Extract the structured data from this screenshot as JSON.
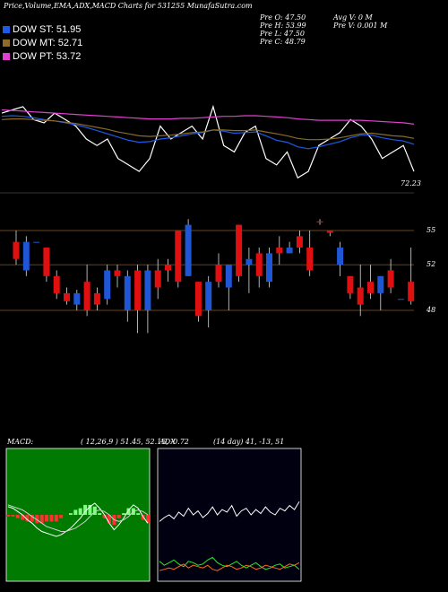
{
  "chart_data": [
    {
      "type": "price-lines",
      "title": "Price,Volume,EMA,ADX,MACD Charts for 531255 MunafaSutra.com",
      "info": [
        "Pre  O: 47.50",
        "Pre  H: 53.99",
        "Pre  L: 47.50",
        "Pre  C: 48.79",
        "Avg V: 0  M",
        "Pre  V: 0.001 M"
      ],
      "annotation": "72.23",
      "ylim": [
        44,
        62
      ],
      "series": [
        {
          "color": "#ffffff",
          "values": [
            57,
            57.5,
            58,
            56,
            55.5,
            57,
            56,
            55,
            53,
            52,
            53,
            50,
            49,
            48,
            50,
            55,
            53,
            54,
            55,
            53,
            58,
            52,
            51,
            54,
            55,
            50,
            49,
            51,
            47,
            48,
            52,
            53,
            54,
            56,
            55,
            53,
            50,
            51,
            52,
            48
          ]
        },
        {
          "name": "DOW ST: 51.95",
          "color": "#1e5ae6",
          "values": [
            56.5,
            56.6,
            56.5,
            56.3,
            56,
            55.8,
            55.5,
            55.2,
            54.8,
            54.3,
            53.8,
            53.3,
            52.8,
            52.5,
            52.6,
            53,
            53.2,
            53.5,
            53.8,
            54,
            54.4,
            54.2,
            53.9,
            54,
            54.1,
            53.5,
            52.8,
            52.5,
            51.8,
            51.5,
            51.8,
            52.2,
            52.6,
            53.2,
            53.6,
            53.6,
            53.2,
            52.9,
            52.7,
            52.2
          ]
        },
        {
          "name": "DOW MT: 52.71",
          "color": "#8b6b2a",
          "values": [
            56,
            56.1,
            56.1,
            56,
            55.9,
            55.8,
            55.6,
            55.4,
            55.1,
            54.8,
            54.5,
            54.1,
            53.8,
            53.5,
            53.4,
            53.5,
            53.6,
            53.8,
            54,
            54.1,
            54.4,
            54.4,
            54.3,
            54.3,
            54.4,
            54.1,
            53.8,
            53.5,
            53.1,
            52.9,
            52.9,
            53,
            53.2,
            53.5,
            53.8,
            53.9,
            53.7,
            53.5,
            53.4,
            53.1
          ]
        },
        {
          "name": "DOW PT: 53.72",
          "color": "#e040d0",
          "values": [
            57.5,
            57.4,
            57.3,
            57.2,
            57.1,
            57,
            56.9,
            56.8,
            56.7,
            56.6,
            56.5,
            56.4,
            56.3,
            56.2,
            56.1,
            56.1,
            56.1,
            56.2,
            56.2,
            56.3,
            56.4,
            56.5,
            56.5,
            56.6,
            56.6,
            56.5,
            56.4,
            56.3,
            56.1,
            56,
            55.9,
            55.9,
            55.9,
            55.9,
            55.9,
            55.8,
            55.7,
            55.6,
            55.5,
            55.3
          ]
        }
      ]
    },
    {
      "type": "candlestick",
      "ylim": [
        43.75,
        57.75
      ],
      "yticks": [
        55,
        52,
        48
      ],
      "up_color": "#1e56d6",
      "down_color": "#e01010",
      "open": [
        54,
        51.5,
        54,
        53.5,
        51,
        49.5,
        48.5,
        50.5,
        49.5,
        49,
        51.5,
        48,
        51.5,
        48,
        51.5,
        52,
        55,
        51,
        50.5,
        48,
        52,
        50,
        55.5,
        52,
        53,
        50.5,
        53.5,
        53,
        54.5,
        53.5,
        55.8,
        55,
        52,
        51,
        50,
        50.5,
        49.5,
        51.5,
        49,
        50.5
      ],
      "high": [
        55,
        54.5,
        54,
        53.5,
        51.5,
        50,
        49.8,
        52,
        50,
        52,
        52,
        51.5,
        52,
        52,
        52.5,
        52.5,
        55,
        56,
        50.5,
        51,
        53,
        52,
        55.5,
        53.5,
        53.5,
        53.5,
        54.5,
        54,
        55,
        55,
        56,
        55,
        54,
        51,
        52,
        52,
        51,
        52.5,
        49,
        53.5
      ],
      "low": [
        52,
        51,
        54,
        50.5,
        49,
        48.5,
        48,
        47.5,
        48,
        48.5,
        50,
        47,
        46,
        46,
        49,
        50.5,
        50,
        51,
        47,
        46.5,
        50,
        48,
        50.5,
        49.5,
        50,
        50,
        52,
        53,
        53,
        51,
        55.5,
        54.5,
        51,
        49,
        47.5,
        49,
        48,
        49.5,
        49,
        48.5
      ],
      "close": [
        52.5,
        54,
        54,
        51,
        49.5,
        48.8,
        49.5,
        48,
        48.5,
        51.5,
        51,
        51,
        48,
        51.5,
        50,
        51.5,
        50.5,
        55.5,
        47.5,
        50.5,
        50.5,
        52,
        51,
        52.5,
        51,
        53,
        53,
        53.5,
        53.5,
        51.5,
        55.7,
        54.8,
        53.5,
        49.5,
        48.5,
        49.5,
        51,
        50,
        49,
        48.8
      ]
    },
    {
      "type": "macd",
      "title": "MACD:",
      "subtitle": "( 12,26,9 ) 51.45, 52.15, -0.72",
      "ylim": [
        -4,
        4
      ],
      "series": [
        {
          "color": "#ffffff",
          "values": [
            0.5,
            0.4,
            0.2,
            0,
            -0.3,
            -0.5,
            -0.8,
            -1,
            -1.1,
            -1.2,
            -1.3,
            -1.2,
            -1,
            -0.8,
            -0.5,
            -0.2,
            0.2,
            0.5,
            0.7,
            0.4,
            0,
            -0.5,
            -0.9,
            -0.6,
            -0.2,
            0.3,
            0.6,
            0.4,
            -0.1,
            -0.5
          ]
        },
        {
          "color": "#cfcfcf",
          "values": [
            0.6,
            0.5,
            0.4,
            0.3,
            0.1,
            -0.1,
            -0.3,
            -0.5,
            -0.7,
            -0.8,
            -0.9,
            -1,
            -1,
            -0.9,
            -0.8,
            -0.6,
            -0.4,
            -0.1,
            0.2,
            0.3,
            0.2,
            0,
            -0.3,
            -0.4,
            -0.3,
            -0.1,
            0.2,
            0.3,
            0.2,
            0
          ]
        }
      ],
      "histogram": [
        -0.1,
        -0.1,
        -0.2,
        -0.3,
        -0.4,
        -0.4,
        -0.5,
        -0.5,
        -0.4,
        -0.4,
        -0.4,
        -0.2,
        0,
        0.1,
        0.3,
        0.4,
        0.6,
        0.6,
        0.5,
        0.1,
        -0.2,
        -0.5,
        -0.6,
        -0.2,
        0.1,
        0.4,
        0.4,
        0.1,
        -0.3,
        -0.5
      ],
      "pos_color": "#7cff7c",
      "neg_color": "#ff3030",
      "background": "#007a00"
    },
    {
      "type": "adx",
      "title": "ADX",
      "subtitle": "(14  day) 41, -13, 51",
      "ylim": [
        0,
        100
      ],
      "background": "#000010",
      "series": [
        {
          "color": "#ffffff",
          "values": [
            45,
            48,
            50,
            47,
            52,
            49,
            55,
            50,
            53,
            48,
            51,
            56,
            50,
            54,
            52,
            57,
            49,
            53,
            55,
            50,
            54,
            51,
            56,
            52,
            50,
            55,
            53,
            57,
            54,
            60
          ]
        },
        {
          "color": "#22ee22",
          "values": [
            15,
            12,
            14,
            16,
            13,
            11,
            15,
            14,
            12,
            13,
            16,
            18,
            14,
            12,
            11,
            13,
            15,
            12,
            10,
            12,
            14,
            11,
            9,
            10,
            12,
            13,
            10,
            11,
            12,
            9
          ]
        },
        {
          "color": "#ff6a1a",
          "values": [
            8,
            9,
            10,
            9,
            11,
            13,
            10,
            12,
            11,
            10,
            12,
            9,
            8,
            10,
            12,
            11,
            9,
            10,
            12,
            11,
            9,
            10,
            12,
            11,
            10,
            9,
            11,
            13,
            12,
            14
          ]
        }
      ]
    }
  ]
}
